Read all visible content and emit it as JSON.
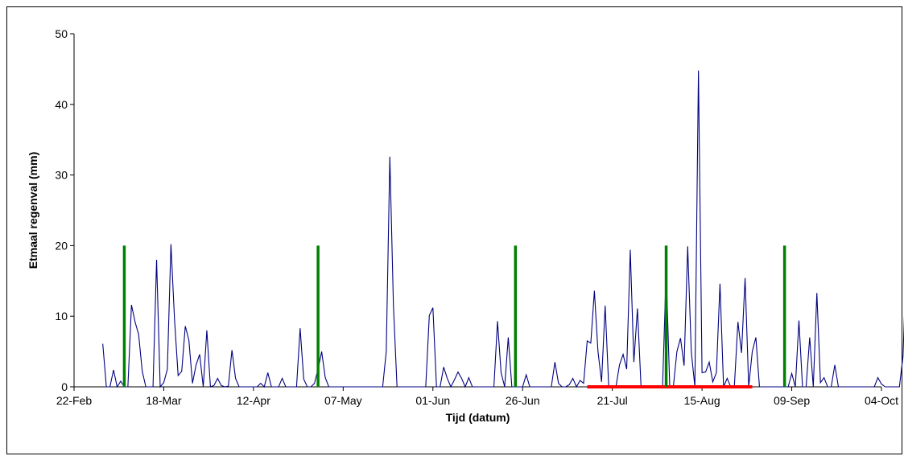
{
  "chart_data": {
    "type": "line",
    "title": "",
    "xlabel": "Tijd (datum)",
    "ylabel": "Etmaal regenval (mm)",
    "ylim": [
      0,
      50
    ],
    "yticks": [
      0,
      10,
      20,
      30,
      40,
      50
    ],
    "x_range": [
      "2008-02-22",
      "2008-10-04"
    ],
    "xticks": [
      {
        "date": "2008-02-22",
        "label": "22-Feb"
      },
      {
        "date": "2008-03-18",
        "label": "18-Mar"
      },
      {
        "date": "2008-04-12",
        "label": "12-Apr"
      },
      {
        "date": "2008-05-07",
        "label": "07-May"
      },
      {
        "date": "2008-06-01",
        "label": "01-Jun"
      },
      {
        "date": "2008-06-26",
        "label": "26-Jun"
      },
      {
        "date": "2008-07-21",
        "label": "21-Jul"
      },
      {
        "date": "2008-08-15",
        "label": "15-Aug"
      },
      {
        "date": "2008-09-09",
        "label": "09-Sep"
      },
      {
        "date": "2008-10-04",
        "label": "04-Oct"
      }
    ],
    "grid": false,
    "legend": "none",
    "series": [
      {
        "color": "#000080",
        "start_date": "2008-03-01",
        "values": [
          6.1,
          0,
          0,
          2.4,
          0,
          0.8,
          0,
          0,
          11.6,
          9.2,
          7.4,
          2.2,
          0,
          0,
          0,
          18,
          0,
          0.6,
          2.5,
          20.2,
          9.5,
          1.6,
          2.2,
          8.6,
          6.6,
          0.5,
          3.1,
          4.6,
          0,
          8,
          0,
          0.2,
          1.2,
          0.2,
          0,
          0.1,
          5.2,
          1.2,
          0,
          0,
          0,
          0,
          0,
          0,
          0.5,
          0,
          2,
          0,
          0,
          0,
          1.2,
          0,
          0,
          0,
          0,
          8.3,
          1.1,
          0,
          0,
          0.5,
          2.5,
          5,
          1.3,
          0,
          0,
          0,
          0,
          0,
          0,
          0,
          0,
          0,
          0,
          0,
          0,
          0,
          0,
          0,
          0,
          5,
          32.6,
          11.5,
          0,
          0,
          0,
          0,
          0,
          0,
          0,
          0,
          0,
          10.1,
          11.2,
          0,
          0,
          2.8,
          1.2,
          0,
          1,
          2.1,
          1.2,
          0,
          1.3,
          0,
          0,
          0,
          0,
          0,
          0,
          0,
          9.3,
          2,
          0,
          7,
          0,
          0,
          0,
          0,
          1.7,
          0,
          0,
          0,
          0,
          0,
          0,
          0,
          3.5,
          0.5,
          0,
          0,
          0.3,
          1.2,
          0,
          0.9,
          0.5,
          6.5,
          6.2,
          13.6,
          5,
          0.7,
          11.5,
          0,
          0,
          0,
          3.1,
          4.6,
          2.5,
          19.4,
          3.5,
          11.1,
          0,
          0,
          0,
          0,
          0,
          0,
          0,
          16.5,
          0,
          0,
          5,
          6.9,
          3,
          19.9,
          5,
          0,
          44.8,
          2,
          2.1,
          3.5,
          0.7,
          2,
          14.6,
          0,
          1.2,
          0,
          0,
          9.2,
          4.8,
          15.4,
          0,
          5,
          7,
          0,
          0,
          0,
          0,
          0,
          0,
          0,
          0,
          0,
          1.9,
          0,
          9.4,
          0,
          0,
          7,
          0,
          13.3,
          0.6,
          1.3,
          0,
          0,
          3.1,
          0,
          0,
          0,
          0,
          0,
          0,
          0,
          0,
          0,
          0,
          0,
          1.3,
          0.4,
          0,
          0,
          0,
          0,
          0,
          4.3,
          18.6
        ]
      }
    ],
    "vertical_markers": {
      "color": "#008000",
      "value": 20,
      "dates": [
        "2008-03-07",
        "2008-04-30",
        "2008-06-24",
        "2008-08-05",
        "2008-09-07"
      ]
    },
    "horizontal_bar": {
      "color": "#ff0000",
      "value": 0,
      "start": "2008-07-14",
      "end": "2008-08-29"
    }
  }
}
